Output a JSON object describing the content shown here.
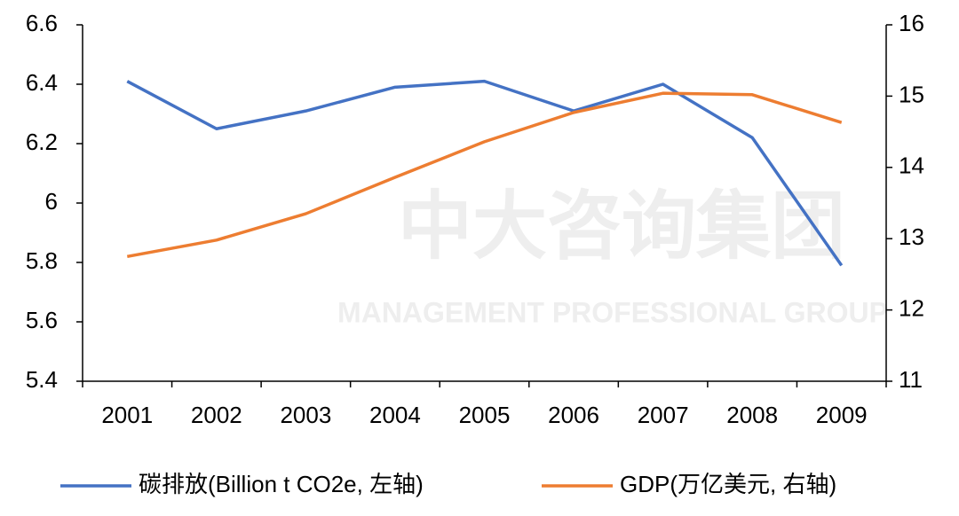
{
  "chart_data": {
    "type": "line",
    "categories": [
      "2001",
      "2002",
      "2003",
      "2004",
      "2005",
      "2006",
      "2007",
      "2008",
      "2009"
    ],
    "series": [
      {
        "name": "碳排放(Billion t CO2e, 左轴)",
        "color": "#4472c4",
        "values": [
          6.41,
          6.25,
          6.31,
          6.39,
          6.41,
          6.31,
          6.4,
          6.22,
          5.79
        ]
      },
      {
        "name": "GDP(万亿美元, 右轴)",
        "color": "#ed7d31",
        "axis": "y2",
        "values": [
          12.75,
          12.98,
          13.35,
          13.86,
          14.36,
          14.77,
          15.04,
          15.02,
          14.63
        ]
      }
    ],
    "ylim": [
      5.4,
      6.6
    ],
    "yticks": [
      5.4,
      5.6,
      5.8,
      6,
      6.2,
      6.4,
      6.6
    ],
    "y2lim": [
      11,
      16
    ],
    "y2ticks": [
      11,
      12,
      13,
      14,
      15,
      16
    ],
    "legend": "bottom",
    "watermark": {
      "text": "中大咨询集团",
      "subtext": "MANAGEMENT PROFESSIONAL GROUP"
    }
  }
}
